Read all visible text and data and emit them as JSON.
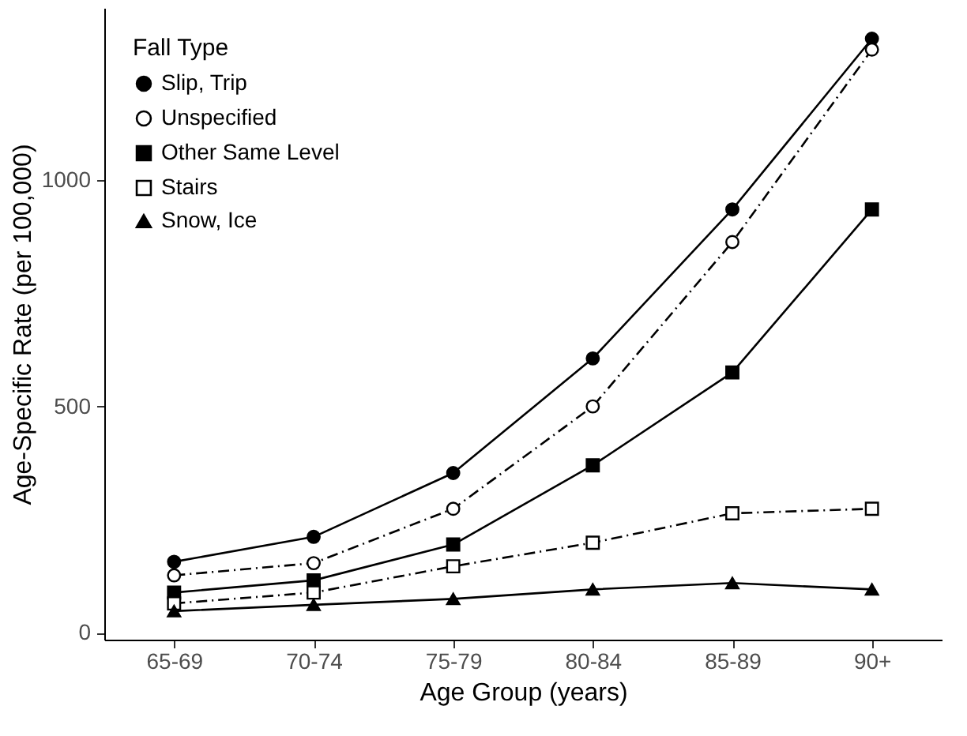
{
  "chart_data": {
    "type": "line",
    "xlabel": "Age Group (years)",
    "ylabel": "Age-Specific Rate (per 100,000)",
    "legend_title": "Fall Type",
    "legend": "top left",
    "grid": false,
    "categories": [
      "65-69",
      "70-74",
      "75-79",
      "80-84",
      "85-89",
      "90+"
    ],
    "ylim": [
      -15,
      1380
    ],
    "yticks": [
      0,
      500,
      1000
    ],
    "series": [
      {
        "name": "Slip, Trip",
        "color": "#000000",
        "marker": "circle",
        "line_style": "solid",
        "values": [
          157,
          212,
          353,
          606,
          935,
          1312
        ]
      },
      {
        "name": "Unspecified",
        "color": "#000000",
        "marker": "circle",
        "line_style": "dashed",
        "values": [
          127,
          154,
          274,
          500,
          863,
          1288
        ]
      },
      {
        "name": "Other Same Level",
        "color": "#000000",
        "marker": "square",
        "line_style": "solid",
        "values": [
          89,
          116,
          195,
          370,
          575,
          935
        ]
      },
      {
        "name": "Stairs",
        "color": "#000000",
        "marker": "square",
        "line_style": "dashed",
        "values": [
          65,
          89,
          147,
          199,
          264,
          274
        ]
      },
      {
        "name": "Snow, Ice",
        "color": "#000000",
        "marker": "triangle",
        "line_style": "solid",
        "values": [
          48,
          62,
          75,
          96,
          110,
          96
        ]
      }
    ]
  }
}
